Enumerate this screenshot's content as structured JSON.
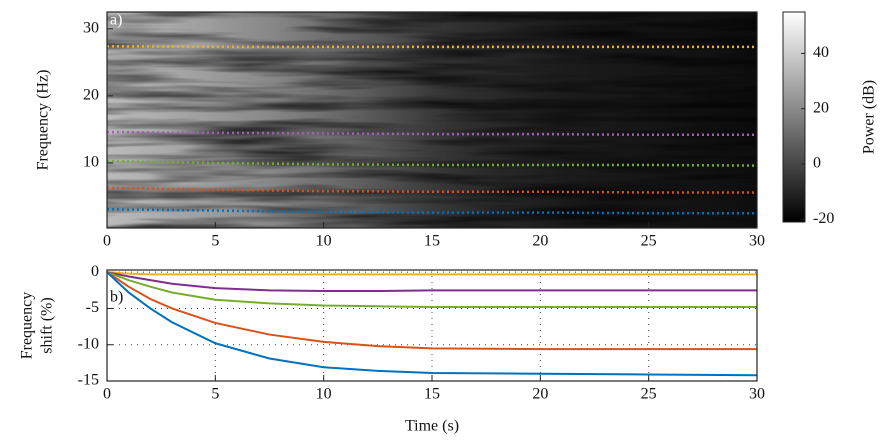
{
  "chart_data": [
    {
      "type": "line",
      "annotation": "a)",
      "ylabel": "Frequency (Hz)",
      "linestyle": "dotted",
      "grid": false,
      "x": [
        0,
        5,
        10,
        15,
        20,
        25,
        30
      ],
      "xlim": [
        0,
        30
      ],
      "xticks": [
        0,
        5,
        10,
        15,
        20,
        25,
        30
      ],
      "ylim": [
        0.3,
        32.5
      ],
      "yticks": [
        10,
        20,
        30
      ],
      "series": [
        {
          "color": "#EDB120",
          "values": [
            27.4,
            27.3,
            27.3,
            27.3,
            27.3,
            27.3,
            27.3
          ]
        },
        {
          "color": "#A25EB3",
          "values": [
            14.6,
            14.5,
            14.4,
            14.3,
            14.3,
            14.2,
            14.2
          ]
        },
        {
          "color": "#77AC30",
          "values": [
            10.3,
            10.0,
            9.8,
            9.7,
            9.7,
            9.7,
            9.6
          ]
        },
        {
          "color": "#D95319",
          "values": [
            6.3,
            6.0,
            5.8,
            5.7,
            5.7,
            5.6,
            5.6
          ]
        },
        {
          "color": "#0072BD",
          "values": [
            3.1,
            2.9,
            2.7,
            2.6,
            2.6,
            2.5,
            2.5
          ]
        }
      ],
      "colorbar": {
        "label": "Power (dB)",
        "lim": [
          -21,
          55
        ],
        "ticks": [
          -20,
          0,
          20,
          40
        ]
      }
    },
    {
      "type": "line",
      "annotation": "b)",
      "ylabel": [
        "Frequency",
        "shift (%)"
      ],
      "xlabel": "Time (s)",
      "linestyle": "solid",
      "grid": true,
      "x": [
        0,
        1,
        2,
        3,
        5,
        7.5,
        10,
        12.5,
        15,
        20,
        25,
        30
      ],
      "xlim": [
        0,
        30
      ],
      "xticks": [
        0,
        5,
        10,
        15,
        20,
        25,
        30
      ],
      "ylim": [
        -15,
        0.3
      ],
      "yticks": [
        0,
        -5,
        -10,
        -15
      ],
      "series": [
        {
          "color": "#EDB120",
          "values": [
            0,
            -0.2,
            -0.3,
            -0.3,
            -0.3,
            -0.3,
            -0.3,
            -0.3,
            -0.3,
            -0.3,
            -0.3,
            -0.3
          ]
        },
        {
          "color": "#7E2F8E",
          "values": [
            0,
            -0.6,
            -1.1,
            -1.6,
            -2.2,
            -2.5,
            -2.6,
            -2.6,
            -2.5,
            -2.5,
            -2.5,
            -2.5
          ]
        },
        {
          "color": "#77AC30",
          "values": [
            0,
            -1.1,
            -2.0,
            -2.8,
            -3.8,
            -4.3,
            -4.6,
            -4.7,
            -4.8,
            -4.8,
            -4.8,
            -4.8
          ]
        },
        {
          "color": "#D95319",
          "values": [
            0,
            -2.0,
            -3.7,
            -5.0,
            -7.0,
            -8.6,
            -9.6,
            -10.2,
            -10.5,
            -10.6,
            -10.6,
            -10.6
          ]
        },
        {
          "color": "#0072BD",
          "values": [
            0,
            -2.8,
            -5.0,
            -6.9,
            -9.8,
            -11.9,
            -13.1,
            -13.6,
            -13.9,
            -14.0,
            -14.1,
            -14.2
          ]
        }
      ]
    }
  ]
}
